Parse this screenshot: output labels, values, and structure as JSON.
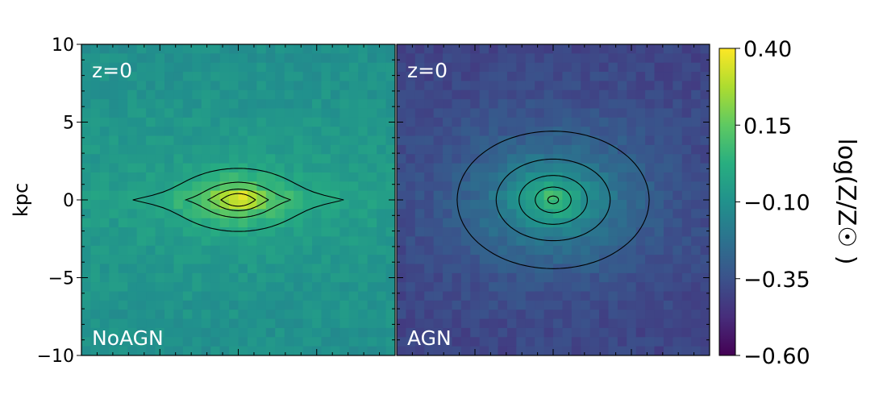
{
  "chart_data": {
    "type": "heatmap",
    "ylabel": "kpc",
    "ylim": [
      -10,
      10
    ],
    "yticks": [
      10,
      5,
      0,
      -5,
      -10
    ],
    "ytick_labels": [
      "10",
      "5",
      "0",
      "−5",
      "−10"
    ],
    "panels": [
      {
        "top_label": "z=0",
        "bottom_label": "NoAGN",
        "xlim": [
          -10,
          10
        ],
        "peak_log_metallicity": 0.4,
        "edge_log_metallicity": -0.05,
        "map_shape": "thin-disc",
        "contour_levels": [
          0.3,
          0.2,
          0.1,
          0.0,
          -0.1,
          -0.2
        ]
      },
      {
        "top_label": "z=0",
        "bottom_label": "AGN",
        "xlim": [
          -10,
          10
        ],
        "peak_log_metallicity": 0.15,
        "edge_log_metallicity": -0.4,
        "map_shape": "oval",
        "contour_levels": [
          0.1,
          0.0,
          -0.1,
          -0.2,
          -0.3
        ]
      }
    ],
    "colorbar": {
      "label": "log(Z/Z☉ )",
      "colormap": "viridis",
      "vmin": -0.6,
      "vmax": 0.4,
      "ticks": [
        0.4,
        0.15,
        -0.1,
        -0.35,
        -0.6
      ],
      "tick_labels": [
        "0.40",
        "0.15",
        "−0.10",
        "−0.35",
        "−0.60"
      ]
    },
    "annotation_color": "#ffffff",
    "contour_color": "#000000"
  }
}
